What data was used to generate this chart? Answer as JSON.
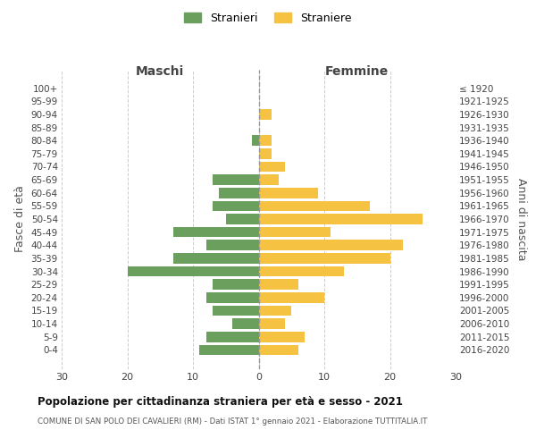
{
  "age_groups": [
    "100+",
    "95-99",
    "90-94",
    "85-89",
    "80-84",
    "75-79",
    "70-74",
    "65-69",
    "60-64",
    "55-59",
    "50-54",
    "45-49",
    "40-44",
    "35-39",
    "30-34",
    "25-29",
    "20-24",
    "15-19",
    "10-14",
    "5-9",
    "0-4"
  ],
  "birth_years": [
    "≤ 1920",
    "1921-1925",
    "1926-1930",
    "1931-1935",
    "1936-1940",
    "1941-1945",
    "1946-1950",
    "1951-1955",
    "1956-1960",
    "1961-1965",
    "1966-1970",
    "1971-1975",
    "1976-1980",
    "1981-1985",
    "1986-1990",
    "1991-1995",
    "1996-2000",
    "2001-2005",
    "2006-2010",
    "2011-2015",
    "2016-2020"
  ],
  "maschi": [
    0,
    0,
    0,
    0,
    1,
    0,
    0,
    7,
    6,
    7,
    5,
    13,
    8,
    13,
    20,
    7,
    8,
    7,
    4,
    8,
    9
  ],
  "femmine": [
    0,
    0,
    2,
    0,
    2,
    2,
    4,
    3,
    9,
    17,
    25,
    11,
    22,
    20,
    13,
    6,
    10,
    5,
    4,
    7,
    6
  ],
  "male_color": "#6a9f5e",
  "female_color": "#f5c242",
  "dashed_line_color": "#999999",
  "grid_color": "#cccccc",
  "bg_color": "#ffffff",
  "title": "Popolazione per cittadinanza straniera per età e sesso - 2021",
  "subtitle": "COMUNE DI SAN POLO DEI CAVALIERI (RM) - Dati ISTAT 1° gennaio 2021 - Elaborazione TUTTITALIA.IT",
  "xlabel_left": "Maschi",
  "xlabel_right": "Femmine",
  "ylabel_left": "Fasce di età",
  "ylabel_right": "Anni di nascita",
  "legend_male": "Stranieri",
  "legend_female": "Straniere",
  "xlim": 30
}
